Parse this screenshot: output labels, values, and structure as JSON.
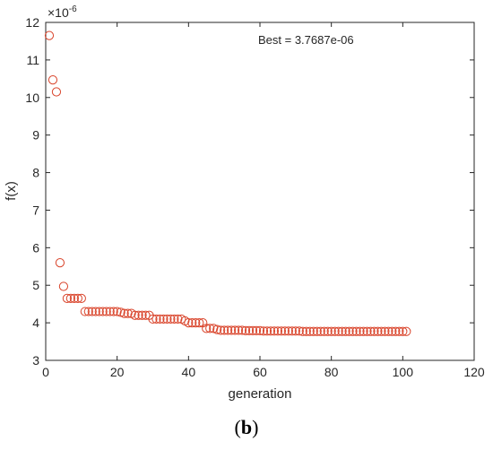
{
  "chart_data": {
    "type": "scatter",
    "xlabel": "generation",
    "ylabel": "f(x)",
    "exponent_label": "×10",
    "exponent_power": "-6",
    "annotation": "Best = 3.7687e-06",
    "xlim": [
      0,
      120
    ],
    "ylim": [
      3,
      12
    ],
    "xticks": [
      "0",
      "20",
      "40",
      "60",
      "80",
      "100",
      "120"
    ],
    "xtick_values": [
      0,
      20,
      40,
      60,
      80,
      100,
      120
    ],
    "yticks": [
      "3",
      "4",
      "5",
      "6",
      "7",
      "8",
      "9",
      "10",
      "11",
      "12"
    ],
    "ytick_values": [
      3,
      4,
      5,
      6,
      7,
      8,
      9,
      10,
      11,
      12
    ],
    "grid": false,
    "marker_color": "#d9442b",
    "x": [
      1,
      2,
      3,
      4,
      5,
      6,
      7,
      8,
      9,
      10,
      11,
      12,
      13,
      14,
      15,
      16,
      17,
      18,
      19,
      20,
      21,
      22,
      23,
      24,
      25,
      26,
      27,
      28,
      29,
      30,
      31,
      32,
      33,
      34,
      35,
      36,
      37,
      38,
      39,
      40,
      41,
      42,
      43,
      44,
      45,
      46,
      47,
      48,
      49,
      50,
      51,
      52,
      53,
      54,
      55,
      56,
      57,
      58,
      59,
      60,
      61,
      62,
      63,
      64,
      65,
      66,
      67,
      68,
      69,
      70,
      71,
      72,
      73,
      74,
      75,
      76,
      77,
      78,
      79,
      80,
      81,
      82,
      83,
      84,
      85,
      86,
      87,
      88,
      89,
      90,
      91,
      92,
      93,
      94,
      95,
      96,
      97,
      98,
      99,
      100,
      101
    ],
    "values": [
      11.65,
      10.47,
      10.15,
      5.6,
      4.97,
      4.65,
      4.65,
      4.65,
      4.65,
      4.65,
      4.3,
      4.3,
      4.3,
      4.3,
      4.3,
      4.3,
      4.3,
      4.3,
      4.3,
      4.3,
      4.28,
      4.25,
      4.25,
      4.25,
      4.2,
      4.2,
      4.2,
      4.2,
      4.2,
      4.1,
      4.1,
      4.1,
      4.1,
      4.1,
      4.1,
      4.1,
      4.1,
      4.1,
      4.05,
      4.0,
      4.0,
      4.0,
      4.0,
      4.0,
      3.85,
      3.85,
      3.85,
      3.82,
      3.8,
      3.8,
      3.8,
      3.8,
      3.8,
      3.8,
      3.8,
      3.79,
      3.79,
      3.79,
      3.79,
      3.79,
      3.78,
      3.78,
      3.78,
      3.78,
      3.78,
      3.78,
      3.78,
      3.78,
      3.78,
      3.78,
      3.78,
      3.77,
      3.77,
      3.77,
      3.77,
      3.77,
      3.77,
      3.77,
      3.77,
      3.77,
      3.77,
      3.77,
      3.77,
      3.77,
      3.77,
      3.77,
      3.77,
      3.77,
      3.77,
      3.77,
      3.77,
      3.77,
      3.77,
      3.77,
      3.77,
      3.77,
      3.77,
      3.77,
      3.77,
      3.77,
      3.77
    ]
  },
  "caption": {
    "open": "(",
    "letter": "b",
    "close": ")"
  }
}
